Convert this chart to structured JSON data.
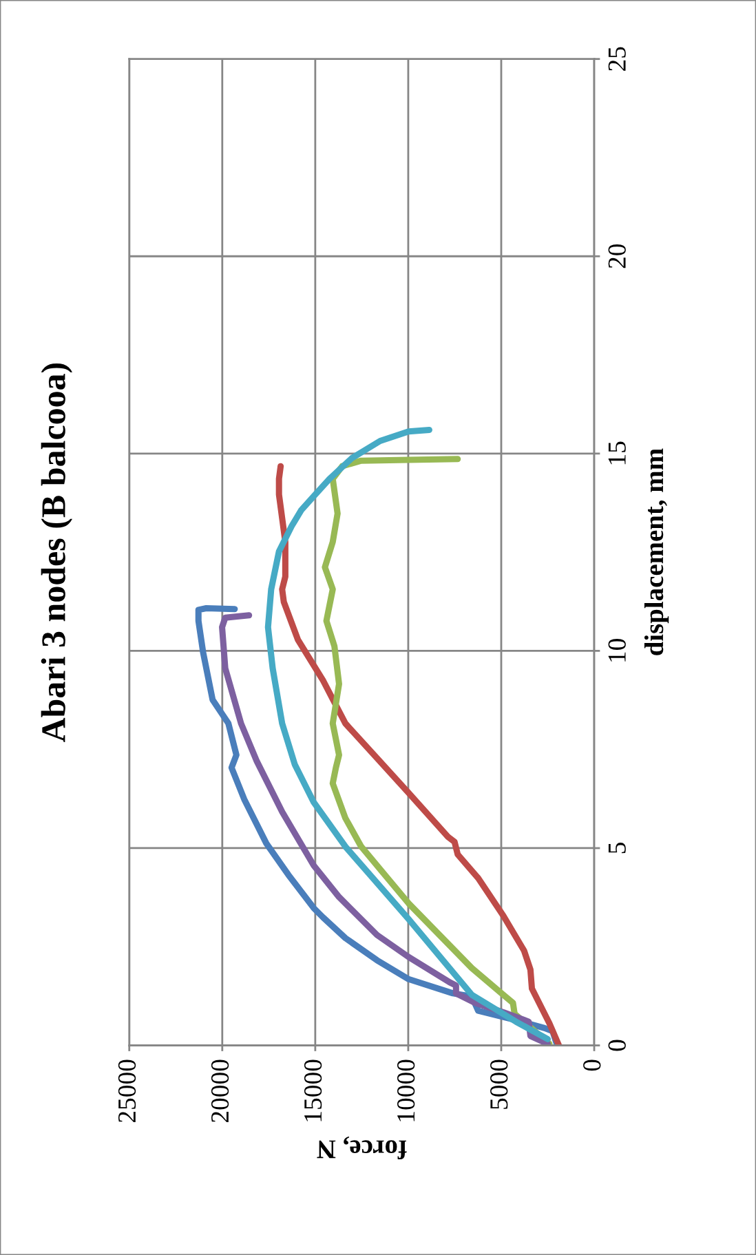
{
  "chart_data": {
    "type": "line",
    "title": "Abari 3 nodes (B balcooa)",
    "xlabel": "force, N",
    "ylabel": "displacement, mm",
    "xlim": [
      25000,
      0
    ],
    "xticks": [
      0,
      5000,
      10000,
      15000,
      20000,
      25000
    ],
    "ylim": [
      0,
      25
    ],
    "yticks": [
      0,
      5,
      10,
      15,
      20,
      25
    ],
    "grid": true,
    "line_style": "solid",
    "marker": "none",
    "series": [
      {
        "color": "#4a7ebb",
        "values": [
          0,
          0.36,
          0.44,
          0.64,
          0.88,
          1.24,
          1.32,
          1.68,
          2.16,
          2.72,
          3.24,
          3.48,
          4.32,
          5.12,
          6.24,
          7.04,
          7.36,
          8.16,
          8.76,
          9.96,
          10.76,
          11.04,
          11.08,
          11.06
        ],
        "x": [
          1990,
          2240,
          2670,
          4200,
          6240,
          6580,
          7600,
          9980,
          11680,
          13380,
          14570,
          15080,
          16440,
          17630,
          18820,
          19500,
          19240,
          19670,
          20520,
          21030,
          21280,
          21280,
          20860,
          19330
        ]
      },
      {
        "color": "#be4b48",
        "values": [
          0,
          0.56,
          1.44,
          1.92,
          2.4,
          3.28,
          4.24,
          4.84,
          5.16,
          5.28,
          6.4,
          7.28,
          8.16,
          9.24,
          10.28,
          11.24,
          11.56,
          11.88,
          12.76,
          13.96,
          14.36,
          14.68
        ],
        "x": [
          1900,
          2410,
          3350,
          3430,
          3770,
          4880,
          6240,
          7340,
          7510,
          7850,
          9980,
          11680,
          13380,
          14570,
          15930,
          16690,
          16780,
          16610,
          16610,
          16950,
          16950,
          16860
        ]
      },
      {
        "color": "#98b954",
        "values": [
          0.04,
          0.8,
          1.08,
          1.28,
          1.96,
          3.6,
          5.04,
          5.76,
          6.64,
          7.04,
          7.36,
          8.16,
          9.16,
          10.12,
          10.76,
          11.56,
          12.12,
          12.76,
          13.48,
          14.36,
          14.68,
          14.82,
          14.84,
          14.86
        ],
        "x": [
          2410,
          4280,
          4370,
          4880,
          6580,
          9980,
          12530,
          13380,
          14060,
          13890,
          13720,
          14060,
          13720,
          13970,
          14400,
          14060,
          14480,
          14060,
          13800,
          14060,
          13550,
          12530,
          9980,
          7340
        ]
      },
      {
        "color": "#7d60a0",
        "values": [
          0.04,
          0.24,
          0.6,
          0.84,
          1.08,
          1.32,
          1.52,
          1.6,
          2.24,
          2.8,
          3.76,
          4.56,
          5.92,
          7.2,
          8.16,
          9.56,
          10.6,
          10.84,
          10.9
        ],
        "x": [
          2500,
          3430,
          3520,
          4880,
          6410,
          7430,
          7430,
          7770,
          9980,
          11680,
          13720,
          15080,
          16780,
          18140,
          18990,
          19840,
          20010,
          19840,
          18560
        ]
      },
      {
        "color": "#46aac5",
        "values": [
          0.16,
          0.6,
          1.28,
          3.2,
          5.04,
          6.16,
          7.12,
          8.16,
          9.56,
          10.6,
          11.56,
          12.52,
          13.16,
          13.56,
          13.92,
          14.36,
          14.88,
          15.32,
          15.56,
          15.6
        ],
        "x": [
          2500,
          4200,
          6580,
          9980,
          13380,
          15080,
          16100,
          16780,
          17290,
          17540,
          17370,
          16950,
          16270,
          15760,
          15080,
          14230,
          13040,
          11510,
          9980,
          8870
        ]
      }
    ]
  }
}
